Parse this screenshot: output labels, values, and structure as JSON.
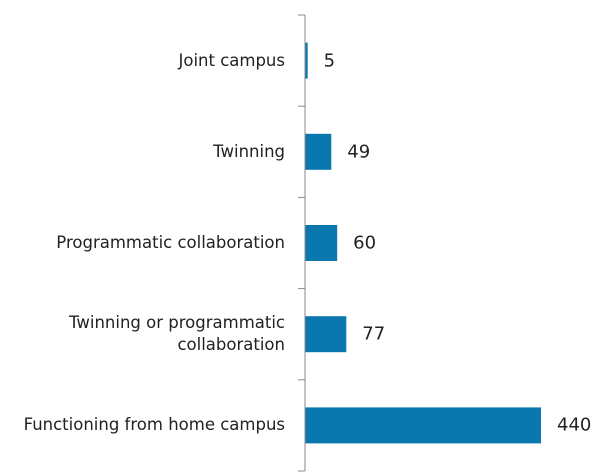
{
  "chart_data": {
    "type": "hbar",
    "categories": [
      "Joint campus",
      "Twinning",
      "Programmatic collaboration",
      "Twinning or programmatic collaboration",
      "Functioning from home campus"
    ],
    "values": [
      5,
      49,
      60,
      77,
      440
    ],
    "color": "#0a78ae"
  }
}
